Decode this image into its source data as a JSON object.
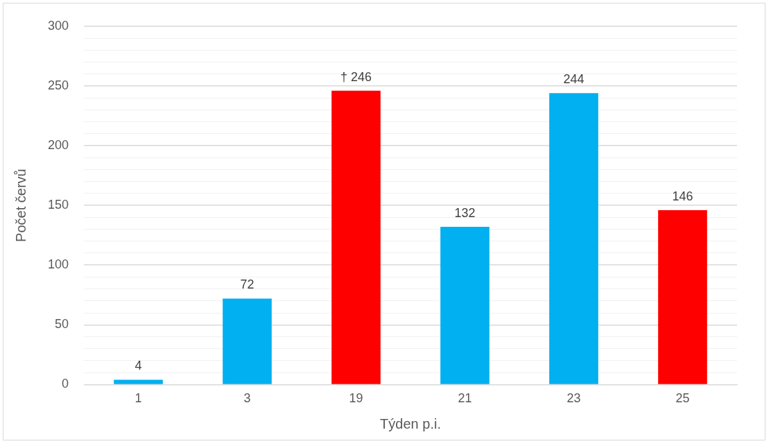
{
  "chart_data": {
    "type": "bar",
    "xlabel": "Týden p.i.",
    "ylabel": "Počet červů",
    "categories": [
      "1",
      "3",
      "19",
      "21",
      "23",
      "25"
    ],
    "values": [
      4,
      72,
      246,
      132,
      244,
      146
    ],
    "colors": [
      "#00b0f0",
      "#00b0f0",
      "#ff0000",
      "#00b0f0",
      "#00b0f0",
      "#ff0000"
    ],
    "value_labels": [
      "4",
      "72",
      "† 246",
      "132",
      "244",
      "146"
    ],
    "ylim": [
      0,
      300
    ],
    "yticks": [
      0,
      {
        "value": 10,
        "label": null
      },
      {
        "value": 20,
        "label": null
      },
      {
        "value": 30,
        "label": null
      },
      {
        "value": 40,
        "label": null
      },
      50,
      {
        "value": 60,
        "label": null
      },
      {
        "value": 70,
        "label": null
      },
      {
        "value": 80,
        "label": null
      },
      {
        "value": 90,
        "label": null
      },
      100,
      {
        "value": 110,
        "label": null
      },
      {
        "value": 120,
        "label": null
      },
      {
        "value": 130,
        "label": null
      },
      {
        "value": 140,
        "label": null
      },
      150,
      {
        "value": 160,
        "label": null
      },
      {
        "value": 170,
        "label": null
      },
      {
        "value": 180,
        "label": null
      },
      {
        "value": 190,
        "label": null
      },
      200,
      {
        "value": 210,
        "label": null
      },
      {
        "value": 220,
        "label": null
      },
      {
        "value": 230,
        "label": null
      },
      {
        "value": 240,
        "label": null
      },
      250,
      {
        "value": 260,
        "label": null
      },
      {
        "value": 270,
        "label": null
      },
      {
        "value": 280,
        "label": null
      },
      {
        "value": 290,
        "label": null
      },
      300
    ],
    "grid": "y"
  }
}
